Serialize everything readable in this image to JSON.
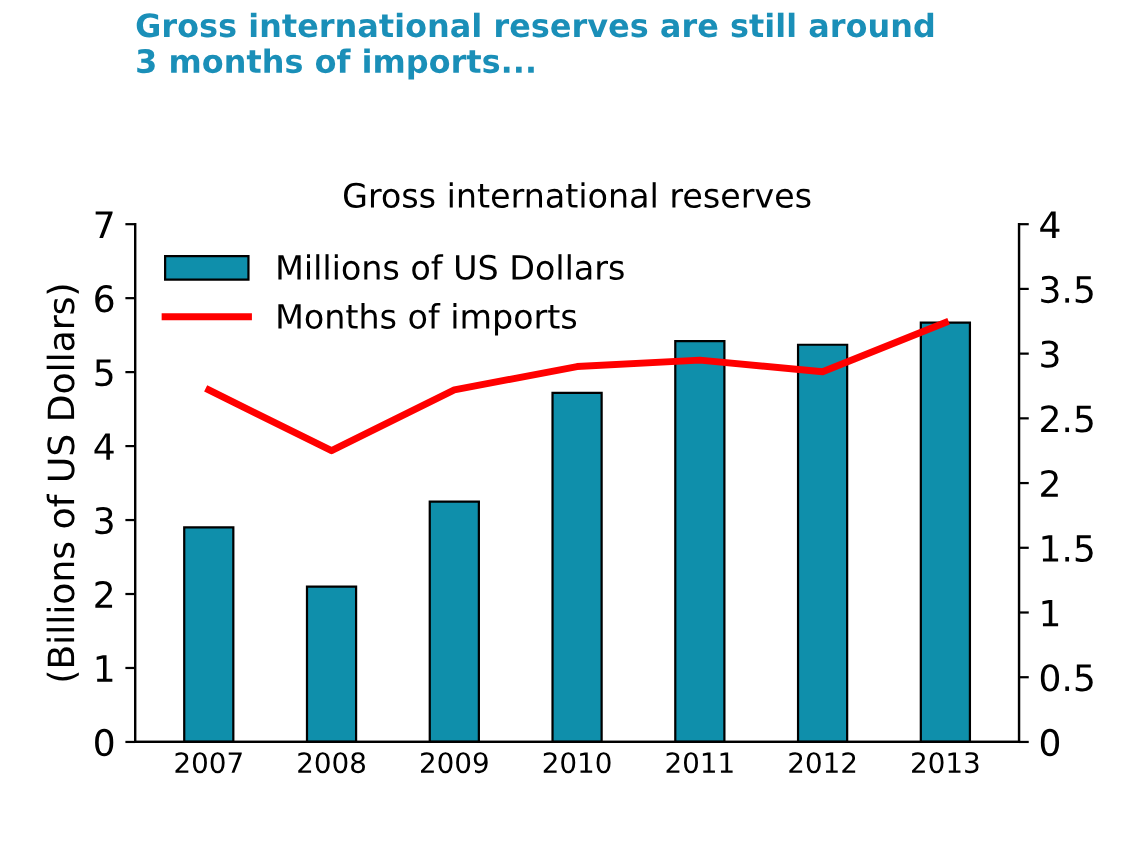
{
  "chart_data": {
    "type": "bar",
    "title": "Gross international reserves are still around\n3 months of imports...",
    "subtitle": "Gross international reserves",
    "ylabel": "(Billions of US Dollars)",
    "categories": [
      "2007",
      "2008",
      "2009",
      "2010",
      "2011",
      "2012",
      "2013"
    ],
    "series": [
      {
        "name": "Millions of US Dollars",
        "color": "#0f8fab",
        "values": [
          2.9,
          2.1,
          3.25,
          4.72,
          5.42,
          5.37,
          5.67
        ]
      },
      {
        "name": "Months of imports",
        "type": "line",
        "axis": "y2",
        "color": "#ff0000",
        "values": [
          2.72,
          2.25,
          2.72,
          2.9,
          2.95,
          2.86,
          3.24
        ]
      }
    ],
    "ylim": [
      0,
      7
    ],
    "yticks": [
      0,
      1,
      2,
      3,
      4,
      5,
      6,
      7
    ],
    "y2lim": [
      0,
      4
    ],
    "y2ticks": [
      0,
      0.5,
      1,
      1.5,
      2,
      2.5,
      3,
      3.5,
      4
    ],
    "legend": "top left",
    "grid": false,
    "marker": "none",
    "line_style": "solid"
  }
}
